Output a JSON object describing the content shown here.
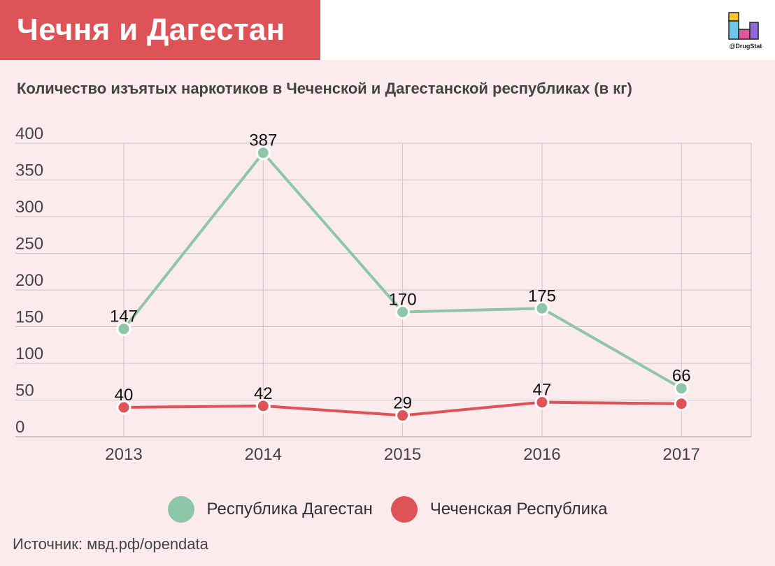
{
  "header": {
    "title": "Чечня и Дагестан"
  },
  "logo": {
    "caption": "@DrugStat",
    "colors": [
      "#f6c432",
      "#6fc6e6",
      "#e0579b",
      "#8e6ad8"
    ]
  },
  "source": "Источник: мвд.рф/opendata",
  "chart_data": {
    "type": "line",
    "title": "Количество изъятых наркотиков в Чеченской и Дагестанской республиках (в кг)",
    "xlabel": "",
    "ylabel": "",
    "categories": [
      "2013",
      "2014",
      "2015",
      "2016",
      "2017"
    ],
    "ylim": [
      0,
      400
    ],
    "yticks": [
      "0",
      "50",
      "100",
      "150",
      "200",
      "250",
      "300",
      "350",
      "400"
    ],
    "grid": true,
    "legend_position": "bottom",
    "series": [
      {
        "name": "Республика Дагестан",
        "color": "#8ec6a8",
        "values": [
          147,
          387,
          170,
          175,
          66
        ],
        "labels": [
          "147",
          "387",
          "170",
          "175",
          "66"
        ]
      },
      {
        "name": "Чеченская Республика",
        "color": "#de5358",
        "values": [
          40,
          42,
          29,
          47,
          45
        ],
        "labels": [
          "40",
          "42",
          "29",
          "47",
          ""
        ]
      }
    ]
  }
}
